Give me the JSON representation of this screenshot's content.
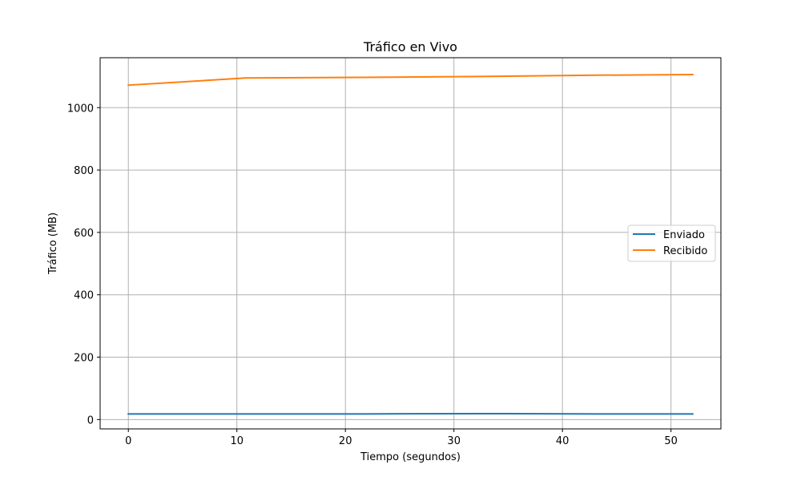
{
  "chart_data": {
    "type": "line",
    "title": "Tráfico en Vivo",
    "xlabel": "Tiempo (segundos)",
    "ylabel": "Tráfico (MB)",
    "xlim": [
      -2.6,
      54.6
    ],
    "ylim": [
      -30,
      1160
    ],
    "xticks": [
      0,
      10,
      20,
      30,
      40,
      50
    ],
    "yticks": [
      0,
      200,
      400,
      600,
      800,
      1000
    ],
    "grid": true,
    "legend_position": "center-right",
    "series": [
      {
        "name": "Enviado",
        "color": "#1f77b4",
        "x": [
          0,
          10.8,
          21.6,
          32.5,
          43.3,
          52
        ],
        "y": [
          18,
          18,
          18,
          19,
          18,
          18
        ]
      },
      {
        "name": "Recibido",
        "color": "#ff7f0e",
        "x": [
          0,
          10.8,
          21.6,
          32.5,
          43.3,
          52
        ],
        "y": [
          1072,
          1095,
          1097,
          1100,
          1104,
          1106
        ]
      }
    ]
  }
}
